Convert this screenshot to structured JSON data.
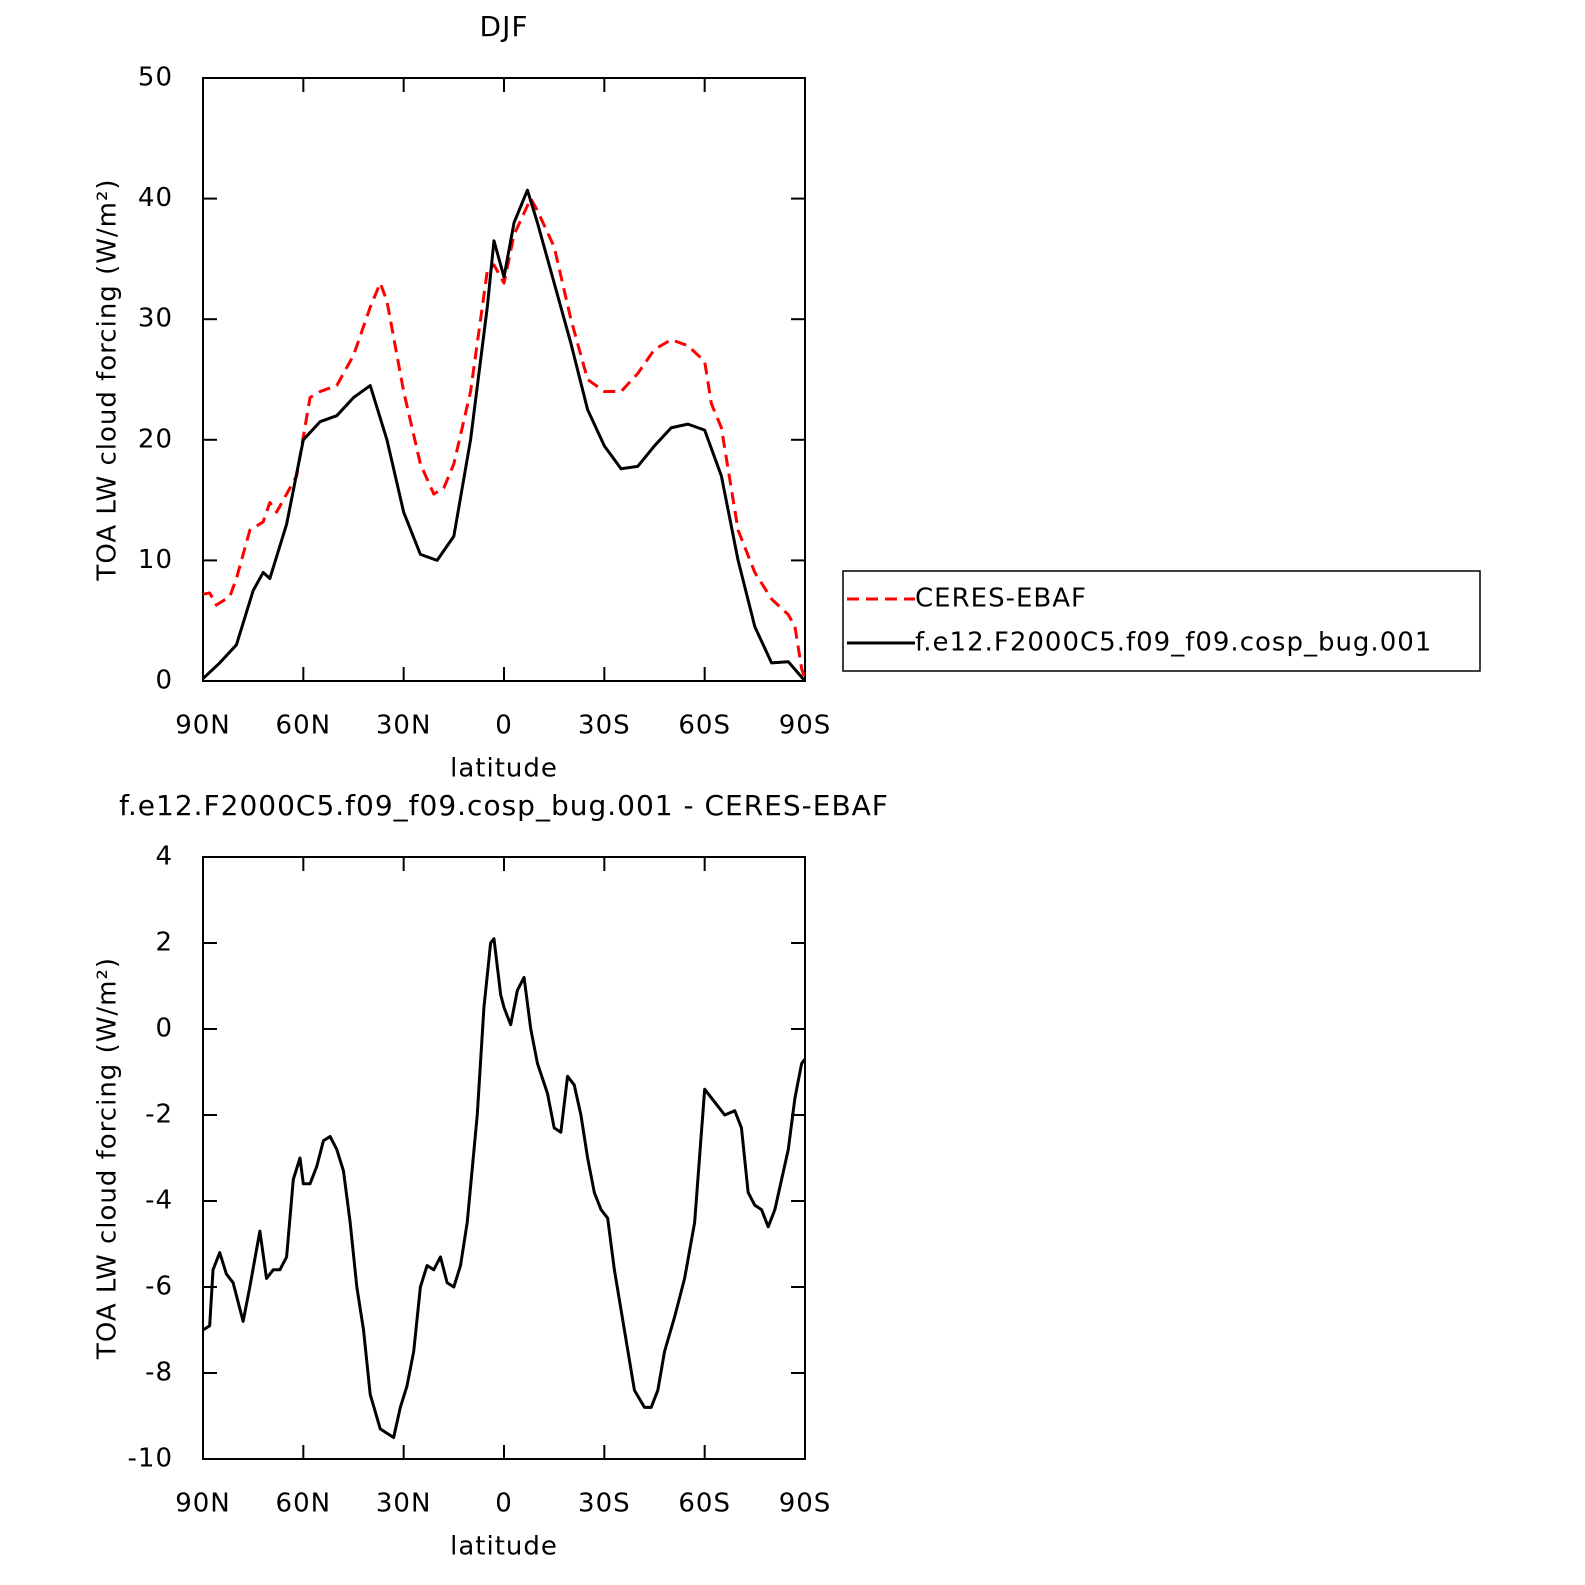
{
  "chart_data": [
    {
      "type": "line",
      "title": "DJF",
      "xlabel": "latitude",
      "ylabel": "TOA LW cloud forcing (W/m²)",
      "xlim": [
        90,
        -90
      ],
      "xticks": [
        {
          "value": 90,
          "label": "90N"
        },
        {
          "value": 60,
          "label": "60N"
        },
        {
          "value": 30,
          "label": "30N"
        },
        0,
        {
          "value": -30,
          "label": "30S"
        },
        {
          "value": -60,
          "label": "60S"
        },
        {
          "value": -90,
          "label": "90S"
        }
      ],
      "ylim": [
        0,
        50
      ],
      "yticks": [
        0,
        10,
        20,
        30,
        40,
        50
      ],
      "legend": "right",
      "series": [
        {
          "name": "CERES-EBAF",
          "color": "#ff0000",
          "dash": true,
          "x": [
            90,
            88,
            86,
            82,
            80,
            76,
            72,
            70,
            68,
            65,
            62,
            58,
            55,
            50,
            45,
            40,
            37,
            35,
            30,
            25,
            21,
            18,
            15,
            10,
            5,
            3,
            0,
            -3,
            -8,
            -10,
            -15,
            -20,
            -25,
            -30,
            -35,
            -40,
            -45,
            -50,
            -55,
            -60,
            -62,
            -65,
            -70,
            -75,
            -80,
            -85,
            -87,
            -89,
            -90
          ],
          "values": [
            7.2,
            7.3,
            6.3,
            7,
            8.5,
            12.5,
            13.2,
            14.8,
            14,
            15.5,
            17,
            23.5,
            24,
            24.5,
            27,
            31,
            33,
            31.5,
            24,
            18,
            15.5,
            16,
            18,
            24,
            34,
            34.5,
            33,
            37,
            40,
            39,
            36,
            30,
            25,
            24,
            24,
            25.5,
            27.5,
            28.3,
            27.8,
            26.5,
            23,
            21,
            12.5,
            9,
            6.8,
            5.5,
            4.5,
            1,
            0.2
          ]
        },
        {
          "name": "f.e12.F2000C5.f09_f09.cosp_bug.001",
          "color": "#000000",
          "dash": false,
          "x": [
            90,
            85,
            80,
            75,
            72,
            70,
            65,
            60,
            55,
            50,
            45,
            40,
            35,
            30,
            25,
            20,
            15,
            10,
            5,
            3,
            0,
            -3,
            -7,
            -10,
            -15,
            -20,
            -25,
            -30,
            -35,
            -40,
            -45,
            -50,
            -55,
            -60,
            -65,
            -70,
            -75,
            -80,
            -85,
            -90
          ],
          "values": [
            0.2,
            1.5,
            3,
            7.5,
            9,
            8.5,
            13,
            20,
            21.5,
            22,
            23.5,
            24.5,
            20,
            14,
            10.5,
            10,
            12,
            20,
            31,
            36.5,
            33.5,
            38,
            40.7,
            38,
            33,
            28,
            22.5,
            19.5,
            17.6,
            17.8,
            19.5,
            21,
            21.3,
            20.8,
            17,
            10,
            4.5,
            1.5,
            1.6,
            0
          ]
        }
      ]
    },
    {
      "type": "line",
      "title": "f.e12.F2000C5.f09_f09.cosp_bug.001 - CERES-EBAF",
      "xlabel": "latitude",
      "ylabel": "TOA LW cloud forcing (W/m²)",
      "xlim": [
        90,
        -90
      ],
      "xticks": [
        {
          "value": 90,
          "label": "90N"
        },
        {
          "value": 60,
          "label": "60N"
        },
        {
          "value": 30,
          "label": "30N"
        },
        0,
        {
          "value": -30,
          "label": "30S"
        },
        {
          "value": -60,
          "label": "60S"
        },
        {
          "value": -90,
          "label": "90S"
        }
      ],
      "ylim": [
        -10,
        4
      ],
      "yticks": [
        -10,
        -8,
        -6,
        -4,
        -2,
        0,
        2,
        4
      ],
      "color": "#000000",
      "x": [
        90,
        88,
        87,
        85,
        83,
        81,
        79,
        78,
        76,
        73,
        71,
        69,
        67,
        65,
        63,
        61,
        60,
        58,
        56,
        54,
        52,
        50,
        48,
        46,
        44,
        42,
        40,
        37,
        35,
        33,
        31,
        29,
        27,
        25,
        23,
        21,
        19,
        17,
        15,
        13,
        11,
        8,
        6,
        4,
        3,
        1,
        0,
        -2,
        -4,
        -6,
        -8,
        -10,
        -13,
        -15,
        -17,
        -19,
        -21,
        -23,
        -25,
        -27,
        -29,
        -31,
        -33,
        -36,
        -39,
        -42,
        -44,
        -46,
        -48,
        -51,
        -54,
        -57,
        -60,
        -62,
        -64,
        -66,
        -69,
        -71,
        -73,
        -75,
        -77,
        -79,
        -81,
        -83,
        -85,
        -87,
        -89,
        -90
      ],
      "values": [
        -7.0,
        -6.9,
        -5.6,
        -5.2,
        -5.7,
        -5.9,
        -6.5,
        -6.8,
        -6.0,
        -4.7,
        -5.8,
        -5.6,
        -5.6,
        -5.3,
        -3.5,
        -3.0,
        -3.6,
        -3.6,
        -3.2,
        -2.6,
        -2.5,
        -2.8,
        -3.3,
        -4.5,
        -6.0,
        -7.0,
        -8.5,
        -9.3,
        -9.4,
        -9.5,
        -8.8,
        -8.3,
        -7.5,
        -6.0,
        -5.5,
        -5.6,
        -5.3,
        -5.9,
        -6.0,
        -5.5,
        -4.5,
        -2.0,
        0.5,
        2.0,
        2.1,
        0.8,
        0.5,
        0.1,
        0.9,
        1.2,
        0.0,
        -0.8,
        -1.5,
        -2.3,
        -2.4,
        -1.1,
        -1.3,
        -2.0,
        -3.0,
        -3.8,
        -4.2,
        -4.4,
        -5.6,
        -7.0,
        -8.4,
        -8.8,
        -8.8,
        -8.4,
        -7.5,
        -6.7,
        -5.8,
        -4.5,
        -1.4,
        -1.6,
        -1.8,
        -2.0,
        -1.9,
        -2.3,
        -3.8,
        -4.1,
        -4.2,
        -4.6,
        -4.2,
        -3.5,
        -2.8,
        -1.6,
        -0.8,
        -0.7
      ]
    }
  ]
}
